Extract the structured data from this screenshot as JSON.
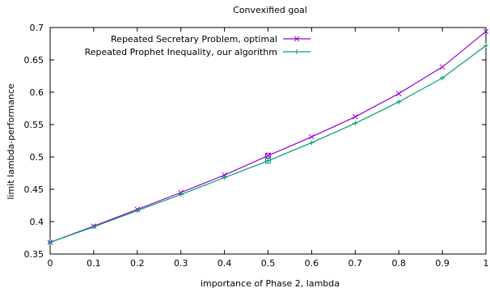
{
  "chart_data": {
    "type": "line",
    "title": "Convexified goal",
    "xlabel": "importance of Phase 2, lambda",
    "ylabel": "limit lambda-performance",
    "xlim": [
      0,
      1
    ],
    "ylim": [
      0.35,
      0.7
    ],
    "x_ticks": [
      "0",
      "0.1",
      "0.2",
      "0.3",
      "0.4",
      "0.5",
      "0.6",
      "0.7",
      "0.8",
      "0.9",
      "1"
    ],
    "y_ticks": [
      "0.35",
      "0.4",
      "0.45",
      "0.5",
      "0.55",
      "0.6",
      "0.65",
      "0.7"
    ],
    "grid": false,
    "legend_position": "top-right",
    "x": [
      0,
      0.1,
      0.2,
      0.3,
      0.4,
      0.5,
      0.6,
      0.7,
      0.8,
      0.9,
      1.0
    ],
    "series": [
      {
        "name": "Repeated Secretary Problem, optimal",
        "color": "#9400d3",
        "marker": "x",
        "values": [
          0.368,
          0.393,
          0.419,
          0.445,
          0.472,
          0.502,
          0.531,
          0.562,
          0.598,
          0.639,
          0.694
        ],
        "highlight": {
          "x": 0.5,
          "y": 0.502,
          "marker": "square"
        }
      },
      {
        "name": "Repeated Prophet Inequality, our algorithm",
        "color": "#009e73",
        "marker": "+",
        "values": [
          0.368,
          0.392,
          0.417,
          0.442,
          0.468,
          0.494,
          0.522,
          0.552,
          0.585,
          0.622,
          0.672
        ],
        "highlight": {
          "x": 0.5,
          "y": 0.494,
          "marker": "square"
        }
      }
    ]
  }
}
